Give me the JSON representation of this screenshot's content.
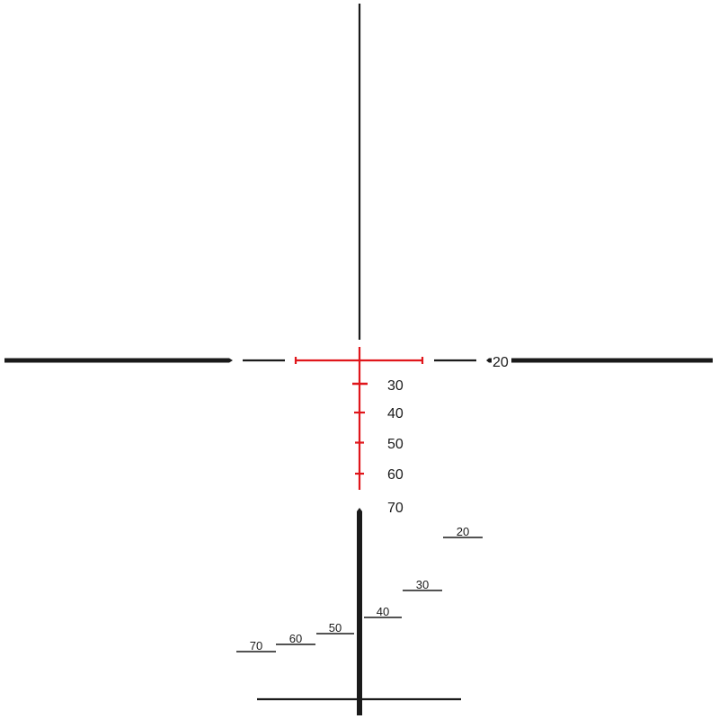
{
  "colors": {
    "reticle": "#1a1a1a",
    "illuminated": "#e0161b",
    "background": "#ffffff"
  },
  "center_labels": {
    "right_20": "20",
    "l30": "30",
    "l40": "40",
    "l50": "50",
    "l60": "60",
    "l70": "70"
  },
  "range_labels": {
    "r20": "20",
    "r30": "30",
    "r40": "40",
    "r50": "50",
    "r60": "60",
    "r70": "70"
  }
}
